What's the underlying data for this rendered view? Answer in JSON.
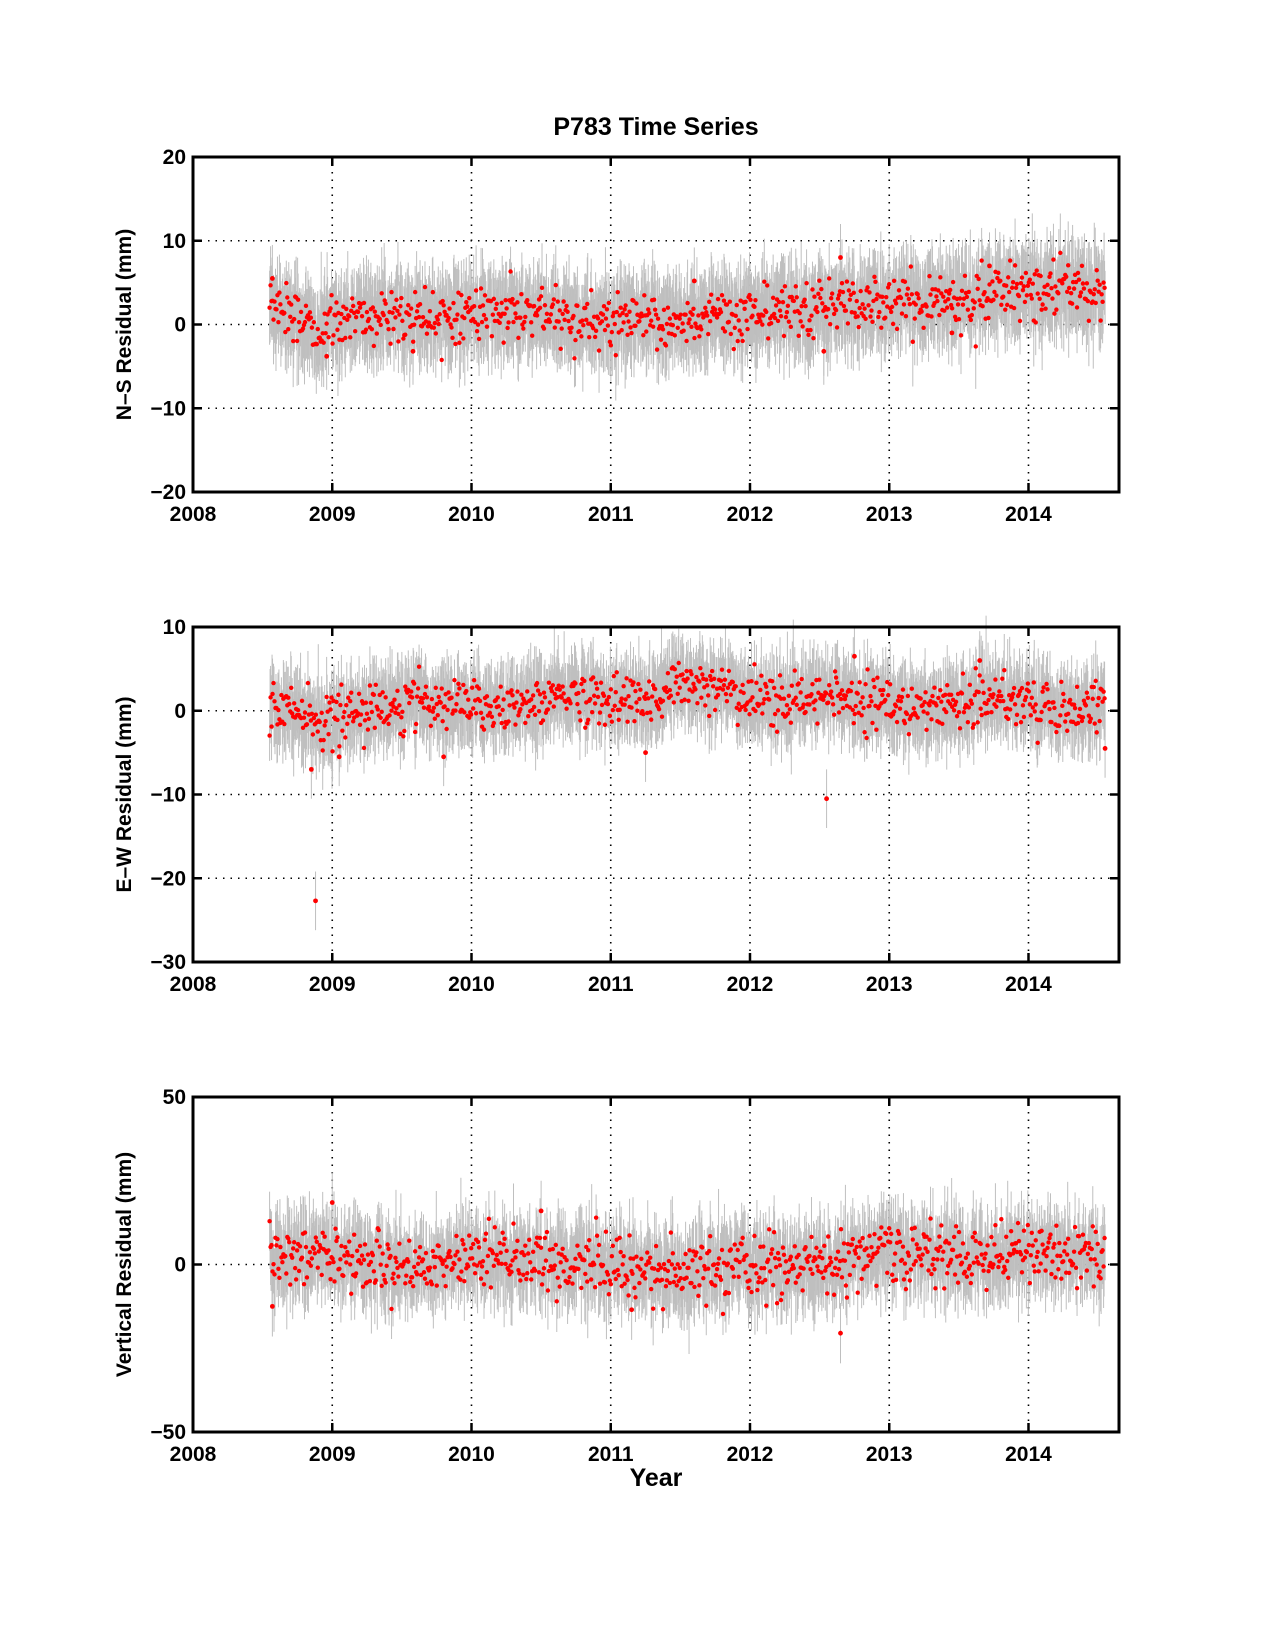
{
  "figure": {
    "title": "P783 Time Series",
    "xlabel": "Year"
  },
  "colors": {
    "point": "#ff0000",
    "errorbar": "#bfbfbf",
    "axes": "#000000",
    "grid": "#000000"
  },
  "chart_data": [
    {
      "type": "scatter",
      "name": "north",
      "ylabel": "N–S Residual (mm)",
      "xlim": [
        2008,
        2014.65
      ],
      "ylim": [
        -20,
        20
      ],
      "xticks": [
        2008,
        2009,
        2010,
        2011,
        2012,
        2013,
        2014
      ],
      "yticks": [
        -20,
        -10,
        0,
        10,
        20
      ],
      "ytick_labels": [
        "−20",
        "−10",
        "0",
        "10",
        "20"
      ],
      "grid": true,
      "series_x_range": [
        2008.55,
        2014.55
      ],
      "trend": [
        [
          2008.55,
          2.5
        ],
        [
          2008.7,
          1.5
        ],
        [
          2008.9,
          -1.5
        ],
        [
          2009.0,
          0.5
        ],
        [
          2009.5,
          1.2
        ],
        [
          2010.0,
          1.2
        ],
        [
          2010.5,
          1.0
        ],
        [
          2011.0,
          0.0
        ],
        [
          2011.5,
          0.5
        ],
        [
          2012.0,
          1.2
        ],
        [
          2012.5,
          2.0
        ],
        [
          2013.0,
          2.5
        ],
        [
          2013.5,
          3.2
        ],
        [
          2014.0,
          4.0
        ],
        [
          2014.55,
          4.5
        ]
      ],
      "scatter_mm": 1.6,
      "errorbar_mm": 4.0,
      "outliers": [
        [
          2008.57,
          5.5
        ],
        [
          2008.96,
          -3.8
        ],
        [
          2009.58,
          -3.2
        ],
        [
          2011.6,
          5.2
        ],
        [
          2012.53,
          -3.2
        ],
        [
          2012.65,
          8.0
        ],
        [
          2013.45,
          -1.0
        ],
        [
          2013.72,
          7.0
        ]
      ]
    },
    {
      "type": "scatter",
      "name": "east",
      "ylabel": "E–W Residual (mm)",
      "xlim": [
        2008,
        2014.65
      ],
      "ylim": [
        -30,
        10
      ],
      "xticks": [
        2008,
        2009,
        2010,
        2011,
        2012,
        2013,
        2014
      ],
      "yticks": [
        -30,
        -20,
        -10,
        0,
        10
      ],
      "ytick_labels": [
        "−30",
        "−20",
        "−10",
        "0",
        "10"
      ],
      "grid": true,
      "series_x_range": [
        2008.55,
        2014.55
      ],
      "trend": [
        [
          2008.55,
          1.0
        ],
        [
          2008.75,
          0.0
        ],
        [
          2008.95,
          -1.5
        ],
        [
          2009.2,
          0.0
        ],
        [
          2009.6,
          1.0
        ],
        [
          2010.0,
          0.5
        ],
        [
          2010.4,
          0.8
        ],
        [
          2010.7,
          2.0
        ],
        [
          2011.0,
          1.5
        ],
        [
          2011.3,
          1.0
        ],
        [
          2011.5,
          3.5
        ],
        [
          2011.7,
          3.0
        ],
        [
          2012.0,
          1.5
        ],
        [
          2012.3,
          1.0
        ],
        [
          2012.6,
          2.0
        ],
        [
          2012.9,
          1.0
        ],
        [
          2013.2,
          0.5
        ],
        [
          2013.4,
          0.0
        ],
        [
          2013.7,
          2.0
        ],
        [
          2014.0,
          1.0
        ],
        [
          2014.3,
          0.0
        ],
        [
          2014.55,
          0.5
        ]
      ],
      "scatter_mm": 1.5,
      "errorbar_mm": 3.5,
      "outliers": [
        [
          2008.88,
          -22.7
        ],
        [
          2012.55,
          -10.5
        ],
        [
          2008.85,
          -7.0
        ],
        [
          2009.05,
          -5.5
        ],
        [
          2009.8,
          -5.5
        ],
        [
          2011.25,
          -5.0
        ],
        [
          2012.75,
          6.5
        ],
        [
          2013.65,
          6.0
        ],
        [
          2014.55,
          -4.5
        ]
      ]
    },
    {
      "type": "scatter",
      "name": "vertical",
      "ylabel": "Vertical Residual (mm)",
      "xlim": [
        2008,
        2014.65
      ],
      "ylim": [
        -50,
        50
      ],
      "xticks": [
        2008,
        2009,
        2010,
        2011,
        2012,
        2013,
        2014
      ],
      "yticks": [
        -50,
        0,
        50
      ],
      "ytick_labels": [
        "−50",
        "0",
        "50"
      ],
      "grid": true,
      "series_x_range": [
        2008.55,
        2014.55
      ],
      "trend": [
        [
          2008.55,
          2.0
        ],
        [
          2009.0,
          3.0
        ],
        [
          2009.5,
          -1.0
        ],
        [
          2010.0,
          2.0
        ],
        [
          2010.5,
          2.0
        ],
        [
          2011.0,
          -1.0
        ],
        [
          2011.5,
          -3.0
        ],
        [
          2012.0,
          0.0
        ],
        [
          2012.5,
          -1.0
        ],
        [
          2013.0,
          4.0
        ],
        [
          2013.5,
          2.0
        ],
        [
          2014.0,
          4.0
        ],
        [
          2014.55,
          3.0
        ]
      ],
      "scatter_mm": 4.5,
      "errorbar_mm": 9.0,
      "outliers": [
        [
          2008.57,
          -12.5
        ],
        [
          2009.0,
          18.5
        ],
        [
          2012.65,
          -20.5
        ],
        [
          2010.5,
          16.0
        ],
        [
          2011.15,
          -13.5
        ]
      ]
    }
  ]
}
